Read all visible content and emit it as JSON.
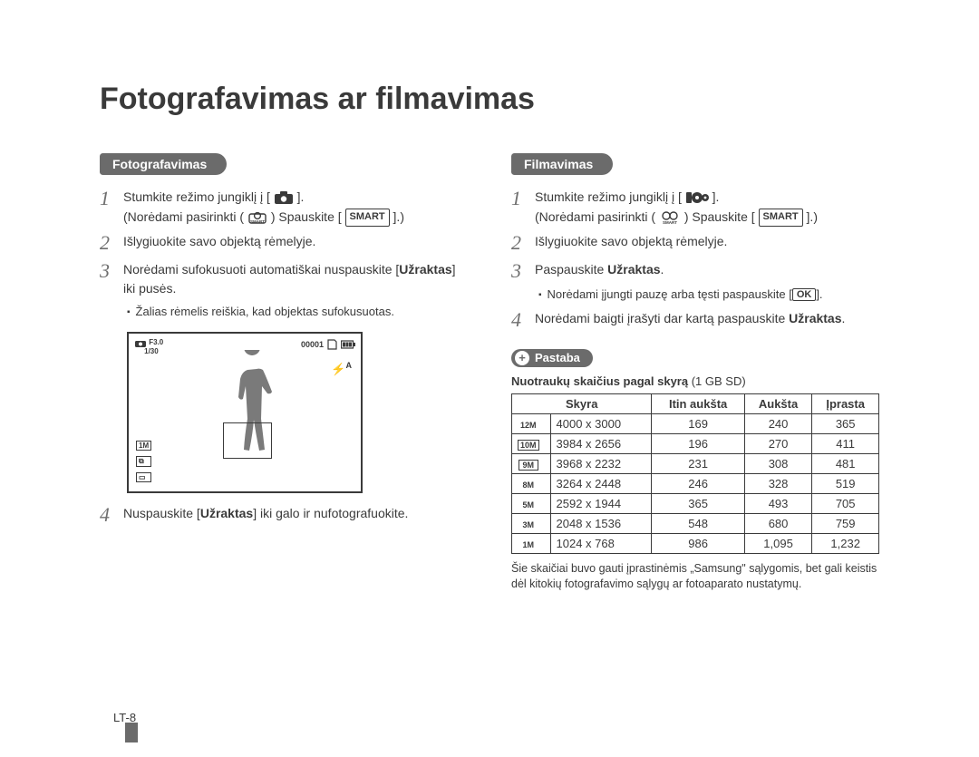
{
  "title": "Fotografavimas ar filmavimas",
  "pageNumber": "LT-8",
  "photo": {
    "tab": "Fotografavimas",
    "step1_a": "Stumkite režimo jungiklį į [",
    "step1_b": "].",
    "step1_sub_a": "(Norėdami pasirinkti (",
    "step1_sub_b": ") Spauskite [",
    "step1_sub_c": "].)",
    "smart": "SMART",
    "step2": "Išlygiuokite savo objektą rėmelyje.",
    "step3_a": "Norėdami sufokusuoti automatiškai nuspauskite [",
    "step3_b": "Užraktas",
    "step3_c": "] iki pusės.",
    "step3_bullet": "Žalias rėmelis reiškia, kad objektas sufokusuotas.",
    "lcd": {
      "fstop": "F3.0",
      "shutter": "1/30",
      "counter": "00001",
      "flash": "A",
      "leftIcon1": "1M",
      "leftIcon2": "⧉",
      "leftIcon3": "▭"
    },
    "step4_a": "Nuspauskite [",
    "step4_b": "Užraktas",
    "step4_c": "] iki galo ir nufotografuokite."
  },
  "video": {
    "tab": "Filmavimas",
    "step1_a": "Stumkite režimo jungiklį į [",
    "step1_b": "].",
    "step1_sub_a": "(Norėdami pasirinkti (",
    "step1_sub_b": ") Spauskite [",
    "step1_sub_c": "].)",
    "smart": "SMART",
    "step2": "Išlygiuokite savo objektą rėmelyje.",
    "step3_a": "Paspauskite ",
    "step3_b": "Užraktas",
    "step3_c": ".",
    "step3_bullet_a": "Norėdami įjungti pauzę arba tęsti paspauskite [",
    "step3_bullet_b": "].",
    "ok": "OK",
    "step4_a": "Norėdami baigti įrašyti dar kartą paspauskite ",
    "step4_b": "Užraktas",
    "step4_c": "."
  },
  "note": {
    "label": "Pastaba",
    "caption_a": "Nuotraukų skaičius pagal skyrą",
    "caption_b": " (1 GB SD)"
  },
  "table": {
    "headers": [
      "Skyra",
      "Itin aukšta",
      "Aukšta",
      "Įprasta"
    ],
    "rows": [
      {
        "badge": "12M",
        "boxed": false,
        "res": "4000 x 3000",
        "v1": "169",
        "v2": "240",
        "v3": "365"
      },
      {
        "badge": "10M",
        "boxed": true,
        "res": "3984 x 2656",
        "v1": "196",
        "v2": "270",
        "v3": "411"
      },
      {
        "badge": "9M",
        "boxed": true,
        "res": "3968 x 2232",
        "v1": "231",
        "v2": "308",
        "v3": "481"
      },
      {
        "badge": "8M",
        "boxed": false,
        "res": "3264 x 2448",
        "v1": "246",
        "v2": "328",
        "v3": "519"
      },
      {
        "badge": "5M",
        "boxed": false,
        "res": "2592 x 1944",
        "v1": "365",
        "v2": "493",
        "v3": "705"
      },
      {
        "badge": "3M",
        "boxed": false,
        "res": "2048 x 1536",
        "v1": "548",
        "v2": "680",
        "v3": "759"
      },
      {
        "badge": "1M",
        "boxed": false,
        "res": "1024 x 768",
        "v1": "986",
        "v2": "1,095",
        "v3": "1,232"
      }
    ]
  },
  "footnote": "Šie skaičiai buvo gauti įprastinėmis „Samsung\" sąlygomis, bet gali keistis dėl kitokių fotografavimo sąlygų ar fotoaparato nustatymų.",
  "colors": {
    "text": "#3a3a3a",
    "tab_bg": "#6b6b6b",
    "tab_fg": "#ffffff",
    "border": "#3a3a3a",
    "bg": "#ffffff"
  }
}
